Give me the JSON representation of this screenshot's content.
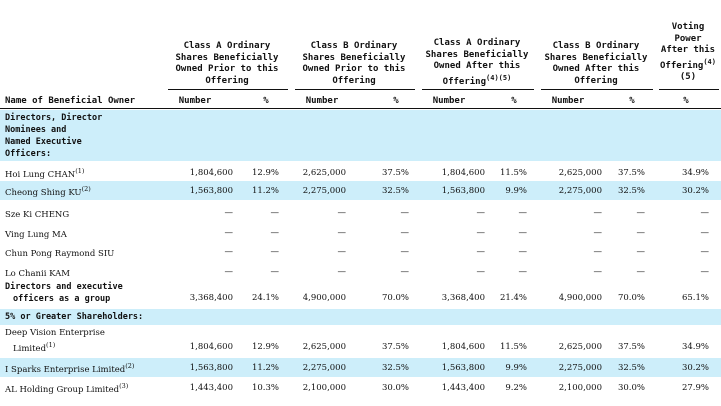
{
  "headers": {
    "col1": [
      "Class A Ordinary",
      "Shares Beneficially",
      "Owned Prior to this",
      "Offering"
    ],
    "col2": [
      "Class B Ordinary",
      "Shares Beneficially",
      "Owned Prior to this",
      "Offering"
    ],
    "col3": [
      "Class A Ordinary",
      "Shares Beneficially",
      "Owned After this",
      "Offering"
    ],
    "col3_sup": "(4)(5)",
    "col4": [
      "Class B Ordinary",
      "Shares Beneficially",
      "Owned After this",
      "Offering"
    ],
    "col5": [
      "Voting",
      "Power",
      "After this",
      "Offering",
      "(5)"
    ],
    "col5_sup": "(4)",
    "owner": "Name of Beneficial Owner",
    "number": "Number",
    "pct": "%"
  },
  "sections": {
    "directors": [
      "Directors, Director",
      "Nominees and",
      "Named Executive",
      "Officers:"
    ],
    "group_label": [
      "Directors and executive",
      "officers as a group"
    ],
    "five_pct": "5% or Greater Shareholders:"
  },
  "rows": [
    {
      "name": "Hoi Lung CHAN",
      "sup": "(1)",
      "a_num": "1,804,600",
      "a_pct": "12.9%",
      "b_num": "2,625,000",
      "b_pct": "37.5%",
      "a2_num": "1,804,600",
      "a2_pct": "11.5%",
      "b2_num": "2,625,000",
      "b2_pct": "37.5%",
      "vote": "34.9%"
    },
    {
      "name": "Cheong Shing KU",
      "sup": "(2)",
      "a_num": "1,563,800",
      "a_pct": "11.2%",
      "b_num": "2,275,000",
      "b_pct": "32.5%",
      "a2_num": "1,563,800",
      "a2_pct": "9.9%",
      "b2_num": "2,275,000",
      "b2_pct": "32.5%",
      "vote": "30.2%"
    },
    {
      "name": "Sze Ki CHENG",
      "sup": "",
      "a_num": "—",
      "a_pct": "—",
      "b_num": "—",
      "b_pct": "—",
      "a2_num": "—",
      "a2_pct": "—",
      "b2_num": "—",
      "b2_pct": "—",
      "vote": "—"
    },
    {
      "name": "Ving Lung MA",
      "sup": "",
      "a_num": "—",
      "a_pct": "—",
      "b_num": "—",
      "b_pct": "—",
      "a2_num": "—",
      "a2_pct": "—",
      "b2_num": "—",
      "b2_pct": "—",
      "vote": "—"
    },
    {
      "name": "Chun Pong Raymond SIU",
      "sup": "",
      "a_num": "—",
      "a_pct": "—",
      "b_num": "—",
      "b_pct": "—",
      "a2_num": "—",
      "a2_pct": "—",
      "b2_num": "—",
      "b2_pct": "—",
      "vote": "—"
    },
    {
      "name": "Lo Chanii KAM",
      "sup": "",
      "a_num": "—",
      "a_pct": "—",
      "b_num": "—",
      "b_pct": "—",
      "a2_num": "—",
      "a2_pct": "—",
      "b2_num": "—",
      "b2_pct": "—",
      "vote": "—"
    }
  ],
  "group_row": {
    "a_num": "3,368,400",
    "a_pct": "24.1%",
    "b_num": "4,900,000",
    "b_pct": "70.0%",
    "a2_num": "3,368,400",
    "a2_pct": "21.4%",
    "b2_num": "4,900,000",
    "b2_pct": "70.0%",
    "vote": "65.1%"
  },
  "shareholders": [
    {
      "name1": "Deep Vision Enterprise",
      "name2": "Limited",
      "sup": "(1)",
      "a_num": "1,804,600",
      "a_pct": "12.9%",
      "b_num": "2,625,000",
      "b_pct": "37.5%",
      "a2_num": "1,804,600",
      "a2_pct": "11.5%",
      "b2_num": "2,625,000",
      "b2_pct": "37.5%",
      "vote": "34.9%"
    },
    {
      "name1": "I Sparks Enterprise Limited",
      "name2": "",
      "sup": "(2)",
      "a_num": "1,563,800",
      "a_pct": "11.2%",
      "b_num": "2,275,000",
      "b_pct": "32.5%",
      "a2_num": "1,563,800",
      "a2_pct": "9.9%",
      "b2_num": "2,275,000",
      "b2_pct": "32.5%",
      "vote": "30.2%"
    },
    {
      "name1": "AL Holding Group Limited",
      "name2": "",
      "sup": "(3)",
      "a_num": "1,443,400",
      "a_pct": "10.3%",
      "b_num": "2,100,000",
      "b_pct": "30.0%",
      "a2_num": "1,443,400",
      "a2_pct": "9.2%",
      "b2_num": "2,100,000",
      "b2_pct": "30.0%",
      "vote": "27.9%"
    }
  ]
}
